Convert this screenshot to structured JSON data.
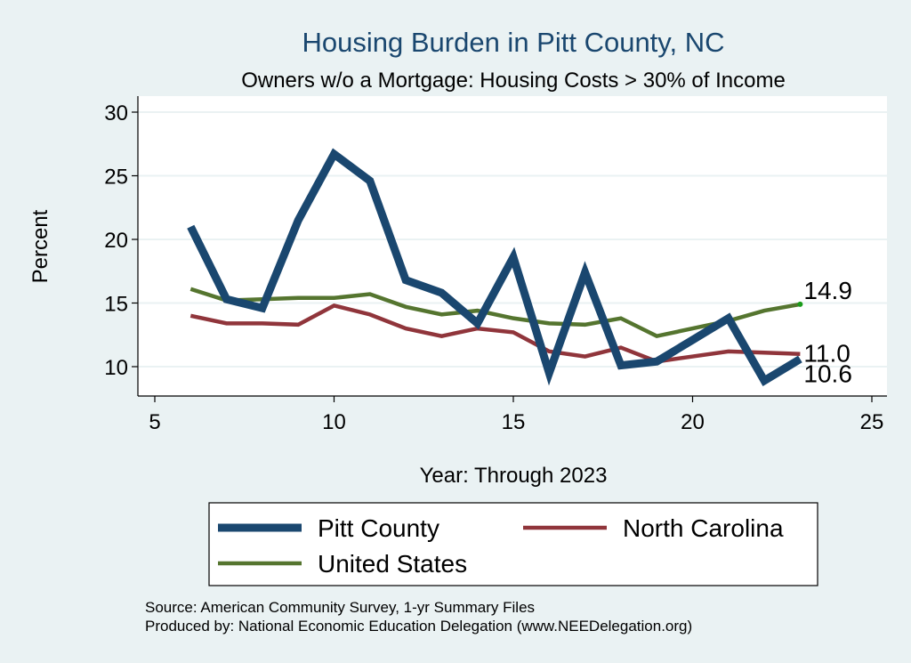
{
  "chart_data": {
    "type": "line",
    "title": "Housing Burden in Pitt County, NC",
    "subtitle": "Owners w/o a Mortgage: Housing Costs > 30% of Income",
    "xlabel": "Year: Through 2023",
    "ylabel": "Percent",
    "xlim": [
      5,
      25
    ],
    "ylim": [
      8,
      30
    ],
    "xticks": [
      5,
      10,
      15,
      20,
      25
    ],
    "yticks": [
      10,
      15,
      20,
      25,
      30
    ],
    "grid": true,
    "x": [
      6,
      7,
      8,
      9,
      10,
      11,
      12,
      13,
      14,
      15,
      16,
      17,
      18,
      19,
      20,
      21,
      22,
      23
    ],
    "series": [
      {
        "name": "Pitt County",
        "color": "#1a476f",
        "weight": "thick",
        "values": [
          21.0,
          15.3,
          14.6,
          21.5,
          26.7,
          24.6,
          16.8,
          15.8,
          13.4,
          18.6,
          9.5,
          17.4,
          10.1,
          10.4,
          12.1,
          13.8,
          8.9,
          10.6
        ],
        "end_label": "10.6"
      },
      {
        "name": "North Carolina",
        "color": "#90353b",
        "weight": "medium",
        "values": [
          14.0,
          13.4,
          13.4,
          13.3,
          14.8,
          14.1,
          13.0,
          12.4,
          13.0,
          12.7,
          11.2,
          10.8,
          11.5,
          10.4,
          10.8,
          11.2,
          11.1,
          11.0
        ],
        "end_label": "11.0"
      },
      {
        "name": "United States",
        "color": "#55752f",
        "weight": "medium",
        "values": [
          16.1,
          15.2,
          15.3,
          15.4,
          15.4,
          15.7,
          14.7,
          14.1,
          14.4,
          13.8,
          13.4,
          13.3,
          13.8,
          12.4,
          13.0,
          13.6,
          14.4,
          14.9
        ],
        "end_label": "14.9"
      }
    ],
    "legend": {
      "position": "bottom",
      "entries": [
        "Pitt County",
        "North Carolina",
        "United States"
      ]
    },
    "notes": [
      "Source: American Community Survey, 1-yr Summary Files",
      "Produced by: National Economic Education Delegation (www.NEEDelegation.org)"
    ]
  }
}
